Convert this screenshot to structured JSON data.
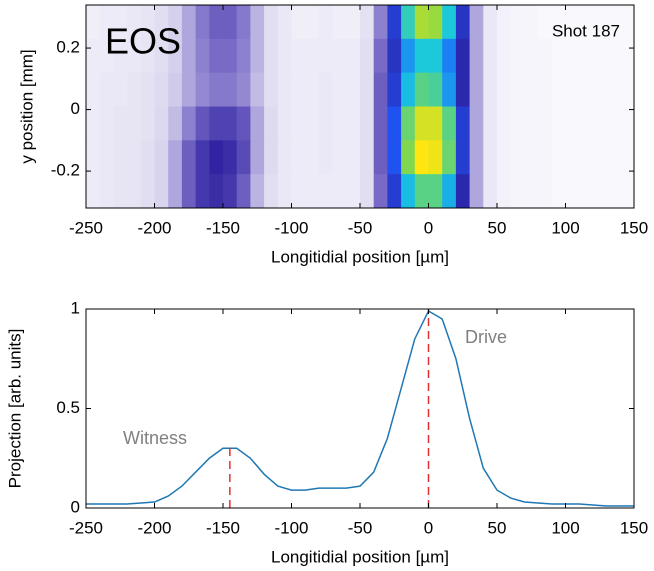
{
  "chart_data": [
    {
      "type": "heatmap",
      "annotations": [
        "EOS",
        "Shot 187"
      ],
      "xlabel": "Longitidial position [µm]",
      "ylabel": "y position [mm]",
      "xlim": [
        -250,
        150
      ],
      "ylim": [
        -0.32,
        0.34
      ],
      "xticks": [
        -250,
        -200,
        -150,
        -100,
        -50,
        0,
        50,
        100,
        150
      ],
      "yticks": [
        0.2,
        0,
        -0.2
      ],
      "colormap": [
        "#ffffff",
        "#d4d0ec",
        "#7466c4",
        "#2c20a0",
        "#1e5aff",
        "#18c8e0",
        "#86d848",
        "#ffe610"
      ],
      "x": [
        -245,
        -235,
        -225,
        -215,
        -205,
        -195,
        -185,
        -175,
        -165,
        -155,
        -145,
        -135,
        -125,
        -115,
        -105,
        -95,
        -85,
        -75,
        -65,
        -55,
        -45,
        -35,
        -25,
        -15,
        -5,
        5,
        15,
        25,
        35,
        45,
        55,
        65,
        75,
        85,
        95,
        105,
        115,
        125,
        135,
        145
      ],
      "y": [
        0.285,
        0.175,
        0.065,
        -0.045,
        -0.155,
        -0.265
      ],
      "z": [
        [
          0.05,
          0.06,
          0.06,
          0.07,
          0.08,
          0.1,
          0.14,
          0.2,
          0.26,
          0.3,
          0.3,
          0.26,
          0.18,
          0.1,
          0.07,
          0.05,
          0.05,
          0.06,
          0.05,
          0.05,
          0.09,
          0.25,
          0.5,
          0.75,
          0.9,
          0.88,
          0.72,
          0.48,
          0.2,
          0.07,
          0.04,
          0.03,
          0.03,
          0.02,
          0.02,
          0.02,
          0.02,
          0.02,
          0.02,
          0.02
        ],
        [
          0.06,
          0.06,
          0.07,
          0.07,
          0.08,
          0.1,
          0.14,
          0.2,
          0.25,
          0.28,
          0.28,
          0.25,
          0.18,
          0.1,
          0.07,
          0.06,
          0.06,
          0.06,
          0.06,
          0.06,
          0.1,
          0.28,
          0.48,
          0.65,
          0.72,
          0.72,
          0.62,
          0.45,
          0.2,
          0.07,
          0.04,
          0.03,
          0.03,
          0.03,
          0.02,
          0.02,
          0.02,
          0.02,
          0.02,
          0.02
        ],
        [
          0.06,
          0.07,
          0.07,
          0.08,
          0.09,
          0.11,
          0.15,
          0.2,
          0.24,
          0.26,
          0.26,
          0.24,
          0.17,
          0.1,
          0.07,
          0.06,
          0.06,
          0.07,
          0.06,
          0.06,
          0.1,
          0.3,
          0.5,
          0.7,
          0.8,
          0.78,
          0.65,
          0.45,
          0.2,
          0.07,
          0.04,
          0.03,
          0.03,
          0.03,
          0.02,
          0.02,
          0.02,
          0.02,
          0.02,
          0.02
        ],
        [
          0.06,
          0.07,
          0.08,
          0.08,
          0.09,
          0.12,
          0.17,
          0.25,
          0.32,
          0.36,
          0.36,
          0.32,
          0.2,
          0.11,
          0.07,
          0.06,
          0.06,
          0.07,
          0.06,
          0.06,
          0.1,
          0.3,
          0.55,
          0.82,
          0.95,
          0.95,
          0.8,
          0.5,
          0.2,
          0.07,
          0.04,
          0.03,
          0.03,
          0.03,
          0.02,
          0.02,
          0.02,
          0.02,
          0.02,
          0.02
        ],
        [
          0.06,
          0.07,
          0.08,
          0.08,
          0.1,
          0.13,
          0.2,
          0.3,
          0.38,
          0.42,
          0.4,
          0.34,
          0.2,
          0.11,
          0.07,
          0.06,
          0.06,
          0.07,
          0.06,
          0.06,
          0.1,
          0.3,
          0.55,
          0.85,
          1.0,
          0.98,
          0.82,
          0.5,
          0.2,
          0.07,
          0.04,
          0.03,
          0.03,
          0.03,
          0.02,
          0.02,
          0.02,
          0.02,
          0.02,
          0.02
        ],
        [
          0.06,
          0.07,
          0.08,
          0.08,
          0.1,
          0.13,
          0.2,
          0.3,
          0.38,
          0.4,
          0.38,
          0.3,
          0.18,
          0.1,
          0.07,
          0.06,
          0.06,
          0.06,
          0.06,
          0.06,
          0.1,
          0.28,
          0.5,
          0.7,
          0.8,
          0.8,
          0.68,
          0.45,
          0.2,
          0.07,
          0.04,
          0.03,
          0.03,
          0.03,
          0.02,
          0.02,
          0.02,
          0.02,
          0.02,
          0.02
        ]
      ]
    },
    {
      "type": "line",
      "annotations": [
        "Witness",
        "Drive"
      ],
      "xlabel": "Longitidial position [µm]",
      "ylabel": "Projection [arb. units]",
      "xlim": [
        -250,
        150
      ],
      "ylim": [
        0,
        1
      ],
      "xticks": [
        -250,
        -200,
        -150,
        -100,
        -50,
        0,
        50,
        100,
        150
      ],
      "yticks": [
        0,
        0.5,
        1
      ],
      "color": "#1f77b4",
      "marker_color": "#e03030",
      "x": [
        -250,
        -240,
        -230,
        -220,
        -210,
        -200,
        -190,
        -180,
        -170,
        -160,
        -150,
        -140,
        -130,
        -120,
        -110,
        -100,
        -90,
        -80,
        -70,
        -60,
        -50,
        -40,
        -30,
        -20,
        -10,
        0,
        10,
        20,
        30,
        40,
        50,
        60,
        70,
        80,
        90,
        100,
        110,
        120,
        130,
        140,
        150
      ],
      "values": [
        0.02,
        0.02,
        0.02,
        0.02,
        0.025,
        0.03,
        0.06,
        0.11,
        0.18,
        0.25,
        0.3,
        0.3,
        0.25,
        0.17,
        0.11,
        0.09,
        0.09,
        0.1,
        0.1,
        0.1,
        0.11,
        0.18,
        0.35,
        0.6,
        0.85,
        0.99,
        0.95,
        0.75,
        0.45,
        0.2,
        0.09,
        0.05,
        0.03,
        0.025,
        0.02,
        0.02,
        0.02,
        0.015,
        0.01,
        0.01,
        0.01
      ],
      "markers": [
        {
          "x": -145,
          "value": 0.31
        },
        {
          "x": 0,
          "value": 1
        }
      ]
    }
  ]
}
